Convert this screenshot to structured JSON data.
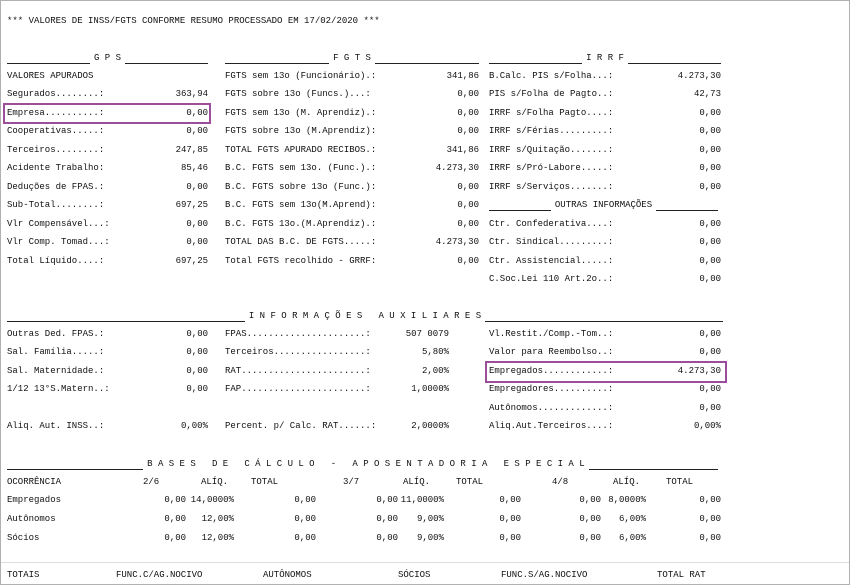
{
  "header": "*** VALORES DE INSS/FGTS CONFORME RESUMO PROCESSADO EM 17/02/2020 ***",
  "gps": {
    "title": "G P S",
    "rows": [
      [
        "VALORES APURADOS",
        null
      ],
      [
        "Segurados........:",
        "363,94"
      ],
      [
        "Empresa..........:",
        "0,00"
      ],
      [
        "Cooperativas.....:",
        "0,00"
      ],
      [
        "Terceiros........:",
        "247,85"
      ],
      [
        "Acidente Trabalho:",
        "85,46"
      ],
      [
        "Deduções de FPAS.:",
        "0,00"
      ],
      [
        "Sub-Total........:",
        "697,25"
      ],
      [
        "Vlr Compensável...:",
        "0,00"
      ],
      [
        "Vlr Comp. Tomad...:",
        "0,00"
      ],
      [
        "Total Líquido....:",
        "697,25"
      ]
    ]
  },
  "fgts": {
    "title": "F G T S",
    "rows": [
      [
        "FGTS sem 13o (Funcionário).:",
        "341,86"
      ],
      [
        "FGTS sobre 13o (Funcs.)...:",
        "0,00"
      ],
      [
        "FGTS sem 13o (M. Aprendiz).:",
        "0,00"
      ],
      [
        "FGTS sobre 13o (M.Aprendiz):",
        "0,00"
      ],
      [
        "TOTAL FGTS APURADO RECIBOS.:",
        "341,86"
      ],
      [
        "B.C. FGTS sem 13o. (Func.).:",
        "4.273,30"
      ],
      [
        "B.C. FGTS sobre 13o (Func.):",
        "0,00"
      ],
      [
        "B.C. FGTS sem 13o(M.Aprend):",
        "0,00"
      ],
      [
        "B.C. FGTS 13o.(M.Aprendiz).:",
        "0,00"
      ],
      [
        "TOTAL DAS B.C. DE FGTS.....:",
        "4.273,30"
      ],
      [
        "Total FGTS recolhido - GRRF:",
        "0,00"
      ]
    ]
  },
  "irrf": {
    "title": "I R R F",
    "rows": [
      [
        "B.Calc. PIS s/Folha...:",
        "4.273,30"
      ],
      [
        "PIS s/Folha de Pagto..:",
        "42,73"
      ],
      [
        "IRRF s/Folha Pagto....:",
        "0,00"
      ],
      [
        "IRRF s/Férias.........:",
        "0,00"
      ],
      [
        "IRRF s/Quitação.......:",
        "0,00"
      ],
      [
        "IRRF s/Pró-Labore.....:",
        "0,00"
      ],
      [
        "IRRF s/Serviços.......:",
        "0,00"
      ]
    ]
  },
  "outras": {
    "title": "OUTRAS INFORMAÇÕES",
    "rows": [
      [
        "Ctr. Confederativa....:",
        "0,00"
      ],
      [
        "Ctr. Sindical.........:",
        "0,00"
      ],
      [
        "Ctr. Assistencial.....:",
        "0,00"
      ],
      [
        "C.Soc.Lei 110 Art.2o..:",
        "0,00"
      ]
    ]
  },
  "auxiliares": {
    "title": "I N F O R M A Ç Õ E S   A U X I L I A R E S",
    "columns": [
      [
        [
          "Outras Ded. FPAS.:",
          "0,00"
        ],
        [
          "Sal. Família.....:",
          "0,00"
        ],
        [
          "Sal. Maternidade.:",
          "0,00"
        ],
        [
          "1/12 13°S.Matern..:",
          "0,00"
        ],
        null,
        [
          "Aliq. Aut. INSS..:",
          "0,00%"
        ]
      ],
      [
        [
          "FPAS......................:",
          "507 0079"
        ],
        [
          "Terceiros.................:",
          "5,80%"
        ],
        [
          "RAT.......................:",
          "2,00%"
        ],
        [
          "FAP.......................:",
          "1,0000%"
        ],
        null,
        [
          "Percent. p/ Calc. RAT......:",
          "2,0000%"
        ]
      ],
      [
        [
          "Vl.Restit./Comp.-Tom..:",
          "0,00"
        ],
        [
          "Valor para Reembolso..:",
          "0,00"
        ],
        [
          "Empregados............:",
          "4.273,30"
        ],
        [
          "Empregadores..........:",
          "0,00"
        ],
        [
          "Autônomos.............:",
          "0,00"
        ],
        [
          "Aliq.Aut.Terceiros....:",
          "0,00%"
        ]
      ]
    ]
  },
  "bases": {
    "title": "B A S E S   D E   C Á L C U L O   -   A P O S E N T A D O R I A   E S P E C I A L",
    "header": [
      "OCORRÊNCIA",
      "2/6",
      "ALÍQ.",
      "TOTAL",
      "3/7",
      "ALÍQ.",
      "TOTAL",
      "4/8",
      "ALÍQ.",
      "TOTAL"
    ],
    "rows": [
      [
        "Empregados",
        "0,00",
        "14,0000%",
        "0,00",
        "0,00",
        "11,0000%",
        "0,00",
        "0,00",
        "8,0000%",
        "0,00"
      ],
      [
        "Autônomos",
        "0,00",
        "12,00%",
        "0,00",
        "0,00",
        "9,00%",
        "0,00",
        "0,00",
        "6,00%",
        "0,00"
      ],
      [
        "Sócios",
        "0,00",
        "12,00%",
        "0,00",
        "0,00",
        "9,00%",
        "0,00",
        "0,00",
        "6,00%",
        "0,00"
      ]
    ]
  },
  "totais": [
    "TOTAIS",
    "FUNC.C/AG.NOCIVO",
    "AUTÔNOMOS",
    "SÓCIOS",
    "FUNC.S/AG.NOCIVO",
    "TOTAL RAT"
  ]
}
